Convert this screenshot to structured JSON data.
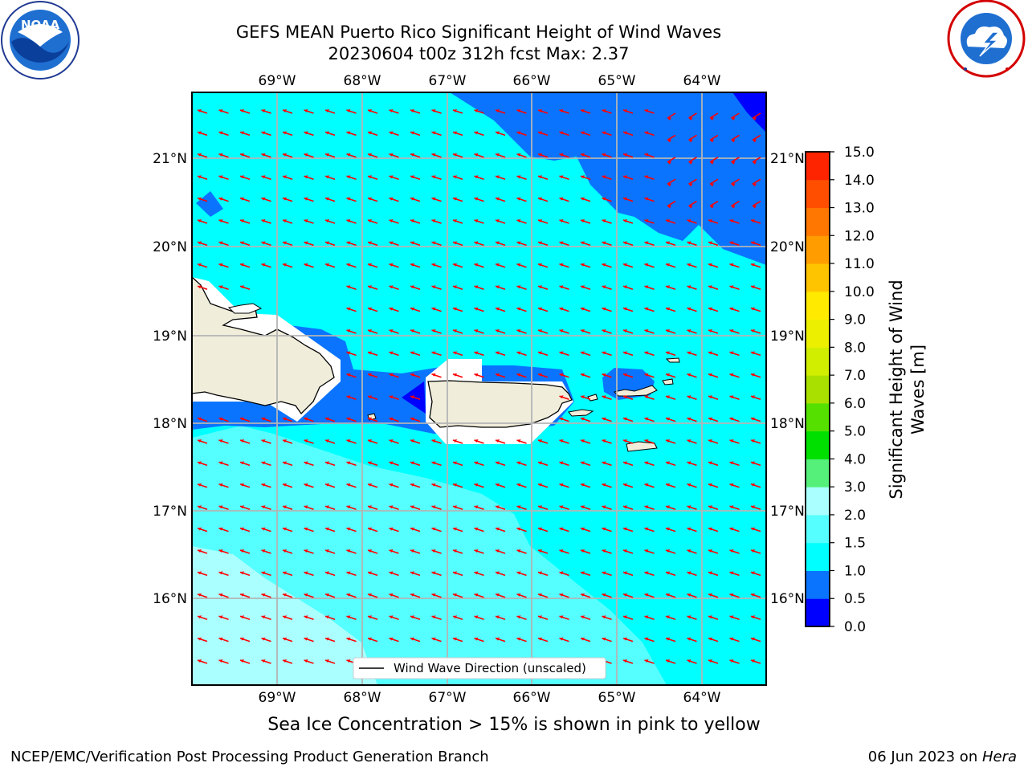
{
  "title_line1": "GEFS MEAN Puerto Rico Significant Height of Wind Waves",
  "title_line2": "20230604 t00z 312h fcst   Max: 2.37",
  "legend_label": "Wind Wave Direction (unscaled)",
  "sea_ice_note": "Sea Ice Concentration > 15% is shown in pink to yellow",
  "footer_left": "NCEP/EMC/Verification Post Processing Product Generation Branch",
  "footer_right_date": "06 Jun 2023 on ",
  "footer_right_host": "Hera",
  "colorbar": {
    "label_line1": "Significant Height of Wind",
    "label_line2": "Waves [m]",
    "ticks": [
      "0.0",
      "0.5",
      "1.0",
      "1.5",
      "2.0",
      "3.0",
      "4.0",
      "5.0",
      "6.0",
      "7.0",
      "8.0",
      "9.0",
      "10.0",
      "11.0",
      "12.0",
      "13.0",
      "14.0",
      "15.0"
    ],
    "colors": [
      "#0000ff",
      "#0a74ff",
      "#00ffff",
      "#55ffff",
      "#aaffff",
      "#55f07a",
      "#00e000",
      "#55e000",
      "#aae000",
      "#d2ee00",
      "#ecf000",
      "#ffea00",
      "#ffc400",
      "#ff9d00",
      "#ff7600",
      "#ff4e00",
      "#ff2400"
    ]
  },
  "map": {
    "lon_labels": [
      "69°W",
      "68°W",
      "67°W",
      "66°W",
      "65°W",
      "64°W"
    ],
    "lat_labels": [
      "21°N",
      "20°N",
      "19°N",
      "18°N",
      "17°N",
      "16°N"
    ],
    "colors": {
      "land": "#f0eedb",
      "ice_free_white": "#ffffff",
      "level_0_0_5": "#0000ff",
      "level_0_5_1_0": "#0a74ff",
      "level_1_0_1_5": "#00ffff",
      "level_1_5_2_0": "#55ffff",
      "level_2_0_3_0": "#aaffff",
      "arrow": "#ff0000",
      "grid": "#b4b4b4"
    }
  },
  "logos": {
    "noaa_text": "NOAA",
    "nws_icon": "nws-logo"
  }
}
